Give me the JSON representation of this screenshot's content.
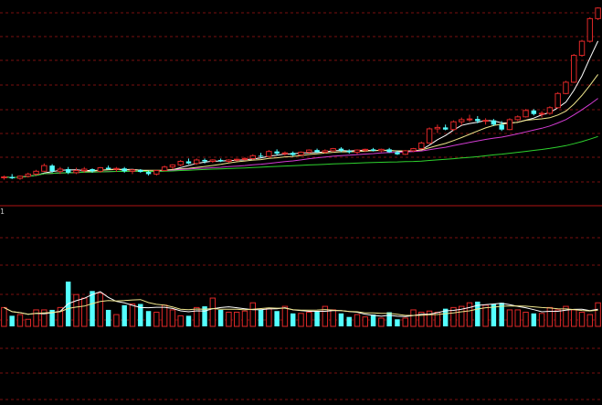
{
  "colors": {
    "background": "#000000",
    "grid": "#7a0f0f",
    "divider": "#b01515",
    "up": "#e02828",
    "down": "#54ffff",
    "ma_short": "#ffffff",
    "ma_mid": "#f0e68c",
    "ma_long": "#d23cd2",
    "ma_longer": "#2ed22e"
  },
  "chart_data": [
    {
      "type": "candlestick",
      "name": "price",
      "grid": true,
      "ohlc": [
        [
          0.65,
          0.68,
          0.62,
          0.66
        ],
        [
          0.66,
          0.7,
          0.63,
          0.64
        ],
        [
          0.64,
          0.68,
          0.62,
          0.67
        ],
        [
          0.67,
          0.72,
          0.65,
          0.7
        ],
        [
          0.7,
          0.76,
          0.68,
          0.74
        ],
        [
          0.74,
          0.85,
          0.73,
          0.82
        ],
        [
          0.82,
          0.84,
          0.72,
          0.74
        ],
        [
          0.74,
          0.8,
          0.7,
          0.77
        ],
        [
          0.77,
          0.8,
          0.7,
          0.72
        ],
        [
          0.72,
          0.79,
          0.7,
          0.75
        ],
        [
          0.75,
          0.8,
          0.72,
          0.77
        ],
        [
          0.77,
          0.78,
          0.72,
          0.74
        ],
        [
          0.74,
          0.8,
          0.72,
          0.79
        ],
        [
          0.79,
          0.82,
          0.76,
          0.77
        ],
        [
          0.77,
          0.8,
          0.73,
          0.78
        ],
        [
          0.78,
          0.8,
          0.72,
          0.74
        ],
        [
          0.74,
          0.77,
          0.7,
          0.76
        ],
        [
          0.76,
          0.77,
          0.72,
          0.73
        ],
        [
          0.73,
          0.75,
          0.68,
          0.7
        ],
        [
          0.7,
          0.76,
          0.68,
          0.75
        ],
        [
          0.75,
          0.82,
          0.74,
          0.8
        ],
        [
          0.8,
          0.84,
          0.77,
          0.83
        ],
        [
          0.83,
          0.9,
          0.81,
          0.88
        ],
        [
          0.88,
          0.92,
          0.84,
          0.85
        ],
        [
          0.85,
          0.92,
          0.83,
          0.9
        ],
        [
          0.9,
          0.92,
          0.85,
          0.88
        ],
        [
          0.88,
          0.91,
          0.86,
          0.9
        ],
        [
          0.9,
          0.92,
          0.87,
          0.88
        ],
        [
          0.88,
          0.91,
          0.86,
          0.9
        ],
        [
          0.9,
          0.92,
          0.88,
          0.91
        ],
        [
          0.91,
          0.94,
          0.89,
          0.92
        ],
        [
          0.92,
          0.98,
          0.9,
          0.96
        ],
        [
          0.96,
          1.0,
          0.93,
          0.95
        ],
        [
          0.95,
          1.04,
          0.94,
          1.02
        ],
        [
          1.02,
          1.05,
          0.97,
          0.99
        ],
        [
          0.99,
          1.02,
          0.96,
          1.0
        ],
        [
          1.0,
          1.02,
          0.95,
          0.97
        ],
        [
          0.97,
          1.02,
          0.96,
          1.01
        ],
        [
          1.01,
          1.05,
          0.99,
          1.04
        ],
        [
          1.04,
          1.06,
          1.0,
          1.01
        ],
        [
          1.01,
          1.05,
          0.99,
          1.03
        ],
        [
          1.03,
          1.07,
          1.01,
          1.06
        ],
        [
          1.06,
          1.08,
          1.01,
          1.03
        ],
        [
          1.03,
          1.05,
          0.99,
          1.01
        ],
        [
          1.01,
          1.05,
          0.98,
          1.04
        ],
        [
          1.04,
          1.06,
          1.01,
          1.05
        ],
        [
          1.05,
          1.07,
          1.02,
          1.03
        ],
        [
          1.03,
          1.06,
          1.01,
          1.05
        ],
        [
          1.05,
          1.07,
          1.0,
          1.01
        ],
        [
          1.01,
          1.03,
          0.97,
          0.98
        ],
        [
          0.98,
          1.04,
          0.97,
          1.03
        ],
        [
          1.03,
          1.07,
          1.01,
          1.06
        ],
        [
          1.06,
          1.16,
          1.05,
          1.14
        ],
        [
          1.14,
          1.36,
          1.13,
          1.34
        ],
        [
          1.34,
          1.4,
          1.28,
          1.36
        ],
        [
          1.36,
          1.4,
          1.32,
          1.33
        ],
        [
          1.33,
          1.46,
          1.31,
          1.44
        ],
        [
          1.44,
          1.5,
          1.39,
          1.47
        ],
        [
          1.47,
          1.54,
          1.44,
          1.48
        ],
        [
          1.48,
          1.52,
          1.42,
          1.45
        ],
        [
          1.45,
          1.49,
          1.4,
          1.46
        ],
        [
          1.46,
          1.48,
          1.38,
          1.4
        ],
        [
          1.4,
          1.45,
          1.31,
          1.33
        ],
        [
          1.33,
          1.49,
          1.32,
          1.47
        ],
        [
          1.47,
          1.53,
          1.45,
          1.51
        ],
        [
          1.51,
          1.62,
          1.5,
          1.6
        ],
        [
          1.6,
          1.62,
          1.53,
          1.55
        ],
        [
          1.55,
          1.59,
          1.5,
          1.56
        ],
        [
          1.56,
          1.66,
          1.54,
          1.64
        ],
        [
          1.64,
          1.86,
          1.63,
          1.84
        ],
        [
          1.84,
          2.02,
          1.83,
          2.0
        ],
        [
          2.0,
          2.4,
          1.99,
          2.38
        ],
        [
          2.38,
          2.6,
          2.36,
          2.58
        ],
        [
          2.58,
          2.92,
          2.56,
          2.9
        ],
        [
          2.9,
          3.06,
          2.88,
          3.05
        ]
      ],
      "moving_averages": [
        {
          "period": 5,
          "color": "#ffffff"
        },
        {
          "period": 10,
          "color": "#f0e68c"
        },
        {
          "period": 20,
          "color": "#d23cd2"
        },
        {
          "period": 60,
          "color": "#2ed22e"
        }
      ],
      "axis_label": "1"
    },
    {
      "type": "bar",
      "name": "volume",
      "grid": true,
      "values": [
        16,
        9,
        10,
        6,
        14,
        14,
        14,
        16,
        38,
        27,
        24,
        30,
        28,
        14,
        10,
        18,
        19,
        19,
        13,
        12,
        18,
        14,
        9,
        9,
        16,
        17,
        24,
        14,
        12,
        12,
        13,
        20,
        14,
        15,
        13,
        17,
        11,
        11,
        12,
        13,
        17,
        14,
        11,
        8,
        10,
        8,
        10,
        7,
        12,
        6,
        7,
        14,
        12,
        13,
        12,
        15,
        16,
        17,
        20,
        21,
        18,
        19,
        20,
        14,
        14,
        12,
        11,
        11,
        16,
        14,
        17,
        14,
        12,
        10,
        20
      ],
      "moving_averages": [
        {
          "period": 5,
          "color": "#ffffff"
        },
        {
          "period": 10,
          "color": "#f0e68c"
        }
      ]
    }
  ]
}
